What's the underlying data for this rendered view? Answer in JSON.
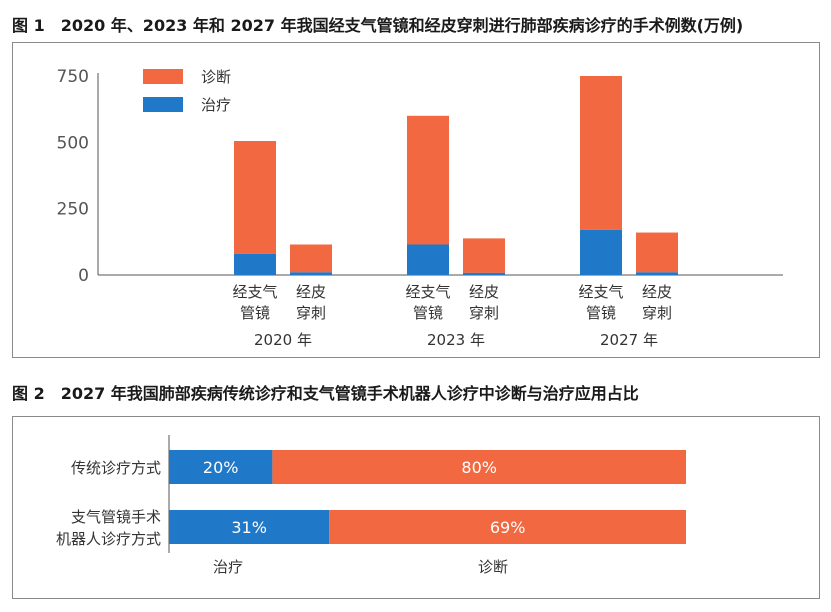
{
  "figure1": {
    "title": "图 1　2020 年、2023 年和 2027 年我国经支气管镜和经皮穿刺进行肺部疾病诊疗的手术例数(万例)"
  },
  "figure2": {
    "title": "图 2　2027 年我国肺部疾病传统诊疗和支气管镜手术机器人诊疗中诊断与治疗应用占比"
  },
  "colors": {
    "diagnosis": "#f26841",
    "treatment": "#1f78c8"
  },
  "chart_data": [
    {
      "type": "bar",
      "stacked": true,
      "years": [
        "2020 年",
        "2023 年",
        "2027 年"
      ],
      "methods": [
        "经支气管镜",
        "经皮穿刺"
      ],
      "method_labels": [
        [
          "经支气管镜",
          "经皮穿刺"
        ],
        [
          "经支气管镜",
          "经皮穿刺"
        ],
        [
          "经支气管镜",
          "经皮穿刺"
        ]
      ],
      "method_label_lines": {
        "经支气管镜": [
          "经支气",
          "管镜"
        ],
        "经皮穿刺": [
          "经皮",
          "穿刺"
        ]
      },
      "series": [
        {
          "name": "治疗",
          "values": [
            [
              80,
              10
            ],
            [
              115,
              8
            ],
            [
              170,
              10
            ]
          ]
        },
        {
          "name": "诊断",
          "values": [
            [
              425,
              105
            ],
            [
              485,
              130
            ],
            [
              580,
              150
            ]
          ]
        }
      ],
      "legend": [
        "诊断",
        "治疗"
      ],
      "legend_position": "top-left",
      "yticks": [
        0,
        250,
        500,
        750
      ],
      "ylim": [
        0,
        750
      ]
    },
    {
      "type": "bar",
      "orientation": "horizontal",
      "stacked": true,
      "percent": true,
      "categories": [
        "传统诊疗方式",
        "支气管镜手术机器人诊疗方式"
      ],
      "category_lines": [
        [
          "传统诊疗方式"
        ],
        [
          "支气管镜手术",
          "机器人诊疗方式"
        ]
      ],
      "series": [
        {
          "name": "治疗",
          "values": [
            20,
            31
          ],
          "labels": [
            "20%",
            "31%"
          ]
        },
        {
          "name": "诊断",
          "values": [
            80,
            69
          ],
          "labels": [
            "80%",
            "69%"
          ]
        }
      ],
      "legend": [
        "治疗",
        "诊断"
      ],
      "legend_position": "bottom",
      "xlim": [
        0,
        100
      ]
    }
  ]
}
